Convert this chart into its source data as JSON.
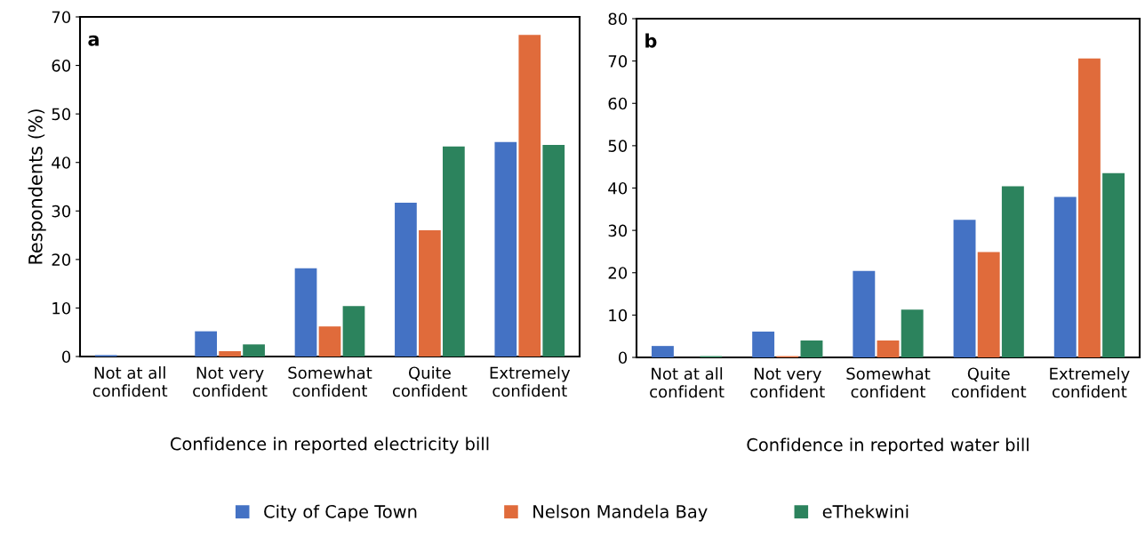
{
  "chart_data": [
    {
      "type": "bar",
      "xlabel": "Confidence in reported electricity bill",
      "ylabel": "Respondents (%)",
      "annotations": [
        "a"
      ],
      "categories": [
        "Not at all\nconfident",
        "Not very\nconfident",
        "Somewhat\nconfident",
        "Quite\nconfident",
        "Extremely\nconfident"
      ],
      "ylim": [
        0,
        70
      ],
      "yticks": [
        0,
        10,
        20,
        30,
        40,
        50,
        60,
        70
      ],
      "grid": false,
      "legend": "bottom",
      "series": [
        {
          "name": "City of Cape Town",
          "color": "#4472c4",
          "values": [
            0.3,
            5.2,
            18.2,
            31.7,
            44.2
          ]
        },
        {
          "name": "Nelson Mandela Bay",
          "color": "#e06b3b",
          "values": [
            0,
            1.1,
            6.2,
            26.0,
            66.3
          ]
        },
        {
          "name": "eThekwini",
          "color": "#2c835d",
          "values": [
            0,
            2.5,
            10.4,
            43.3,
            43.6
          ]
        }
      ]
    },
    {
      "type": "bar",
      "xlabel": "Confidence in reported water bill",
      "annotations": [
        "b"
      ],
      "categories": [
        "Not at all\nconfident",
        "Not very\nconfident",
        "Somewhat\nconfident",
        "Quite\nconfident",
        "Extremely\nconfident"
      ],
      "ylim": [
        0,
        80
      ],
      "yticks": [
        0,
        10,
        20,
        30,
        40,
        50,
        60,
        70,
        80
      ],
      "grid": false,
      "series": [
        {
          "color": "#4472c4",
          "values": [
            2.7,
            6.1,
            20.4,
            32.5,
            37.9
          ]
        },
        {
          "color": "#e06b3b",
          "values": [
            0,
            0.3,
            4.0,
            24.9,
            70.6
          ]
        },
        {
          "color": "#2c835d",
          "values": [
            0.3,
            4.0,
            11.3,
            40.4,
            43.5
          ]
        }
      ]
    }
  ]
}
